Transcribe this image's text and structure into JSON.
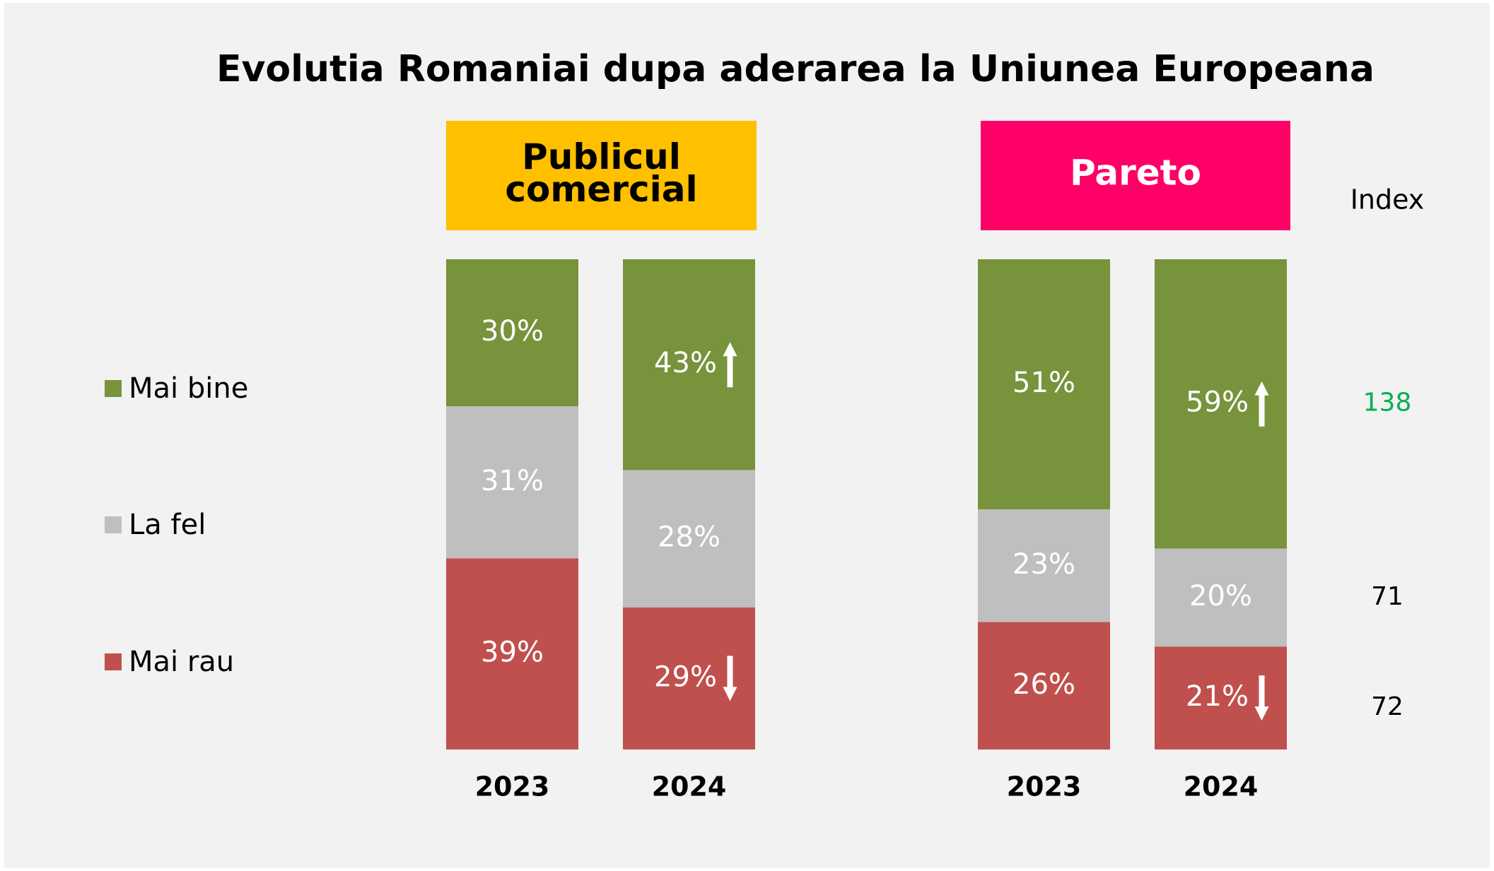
{
  "chart_data": {
    "type": "stacked_bar",
    "title": "Evolutia Romaniai dupa aderarea la Uniunea Europeana",
    "legend_position": "left",
    "ylim": [
      0,
      100
    ],
    "series": [
      {
        "name": "Mai bine",
        "color": "#77933c"
      },
      {
        "name": "La fel",
        "color": "#bfbfbf"
      },
      {
        "name": "Mai rau",
        "color": "#c0504d"
      }
    ],
    "panels": [
      {
        "title": "Publicul comercial",
        "color": "#ffc000",
        "text_color": "#000000",
        "categories": [
          "2023",
          "2024"
        ],
        "values": [
          [
            30,
            43
          ],
          [
            31,
            28
          ],
          [
            39,
            29
          ]
        ],
        "value_labels": [
          [
            "30%",
            "43%"
          ],
          [
            "31%",
            "28%"
          ],
          [
            "39%",
            "29%"
          ]
        ],
        "arrows": [
          "up",
          null,
          "down"
        ]
      },
      {
        "title": "Pareto",
        "color": "#ff0066",
        "text_color": "#ffffff",
        "categories": [
          "2023",
          "2024"
        ],
        "values": [
          [
            51,
            59
          ],
          [
            23,
            20
          ],
          [
            26,
            21
          ]
        ],
        "value_labels": [
          [
            "51%",
            "59%"
          ],
          [
            "23%",
            "20%"
          ],
          [
            "26%",
            "21%"
          ]
        ],
        "arrows": [
          "up",
          null,
          "down"
        ]
      }
    ],
    "index": {
      "label": "Index",
      "values": [
        138,
        71,
        72
      ],
      "colors": [
        "#00b050",
        "#000000",
        "#000000"
      ]
    }
  }
}
